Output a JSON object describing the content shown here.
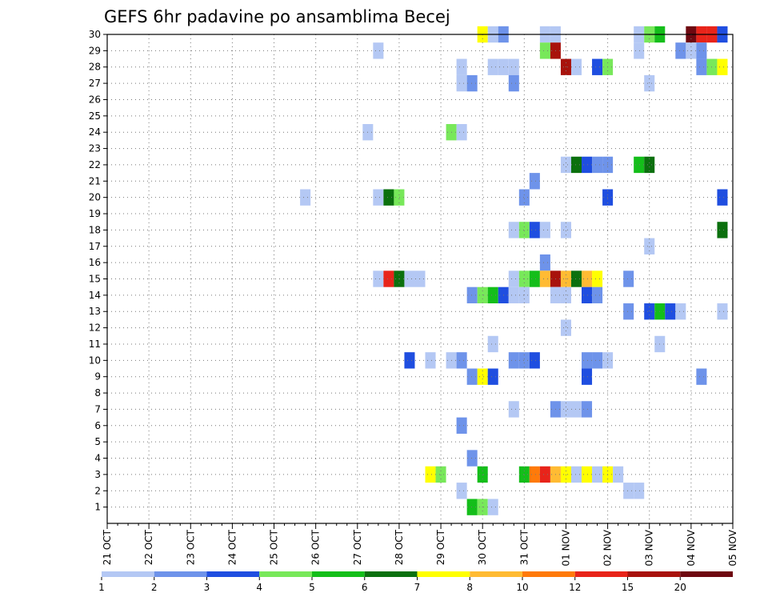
{
  "chart_data": {
    "type": "heatmap",
    "title": "GEFS 6hr padavine po ansamblima Becej",
    "x_ticks": [
      "21 OCT",
      "22 OCT",
      "23 OCT",
      "24 OCT",
      "25 OCT",
      "26 OCT",
      "27 OCT",
      "28 OCT",
      "29 OCT",
      "30 OCT",
      "31 OCT",
      "01 NOV",
      "02 NOV",
      "03 NOV",
      "04 NOV",
      "05 NOV"
    ],
    "y_ticks": [
      "1",
      "2",
      "3",
      "4",
      "5",
      "6",
      "7",
      "8",
      "9",
      "10",
      "11",
      "12",
      "13",
      "14",
      "15",
      "16",
      "17",
      "18",
      "19",
      "20",
      "21",
      "22",
      "23",
      "24",
      "25",
      "26",
      "27",
      "28",
      "29",
      "30"
    ],
    "xlim": [
      0,
      15
    ],
    "ylim": [
      0,
      30
    ],
    "grid": true,
    "colorbar": {
      "levels": [
        "1",
        "2",
        "3",
        "4",
        "5",
        "6",
        "7",
        "8",
        "10",
        "12",
        "15",
        "20"
      ],
      "colors": [
        "#b4c8f4",
        "#6e93ea",
        "#1f4ee0",
        "#78e85a",
        "#14be1a",
        "#0b700e",
        "#ffff00",
        "#ffbb33",
        "#ff7a0a",
        "#e8241a",
        "#a8120c",
        "#6e0810"
      ]
    },
    "cells": [
      {
        "x": 9.0,
        "y": 30,
        "bin": 6
      },
      {
        "x": 9.25,
        "y": 30,
        "bin": 0
      },
      {
        "x": 9.5,
        "y": 30,
        "bin": 1
      },
      {
        "x": 10.5,
        "y": 30,
        "bin": 0
      },
      {
        "x": 10.75,
        "y": 30,
        "bin": 0
      },
      {
        "x": 12.75,
        "y": 30,
        "bin": 0
      },
      {
        "x": 13.0,
        "y": 30,
        "bin": 3
      },
      {
        "x": 13.25,
        "y": 30,
        "bin": 4
      },
      {
        "x": 14.0,
        "y": 30,
        "bin": 11
      },
      {
        "x": 14.25,
        "y": 30,
        "bin": 9
      },
      {
        "x": 14.5,
        "y": 30,
        "bin": 9
      },
      {
        "x": 14.75,
        "y": 30,
        "bin": 2
      },
      {
        "x": 6.5,
        "y": 29,
        "bin": 0
      },
      {
        "x": 10.5,
        "y": 29,
        "bin": 3
      },
      {
        "x": 10.75,
        "y": 29,
        "bin": 10
      },
      {
        "x": 12.75,
        "y": 29,
        "bin": 0
      },
      {
        "x": 13.75,
        "y": 29,
        "bin": 1
      },
      {
        "x": 14.0,
        "y": 29,
        "bin": 0
      },
      {
        "x": 14.25,
        "y": 29,
        "bin": 1
      },
      {
        "x": 8.5,
        "y": 28,
        "bin": 0
      },
      {
        "x": 9.25,
        "y": 28,
        "bin": 0
      },
      {
        "x": 9.5,
        "y": 28,
        "bin": 0
      },
      {
        "x": 9.75,
        "y": 28,
        "bin": 0
      },
      {
        "x": 11.0,
        "y": 28,
        "bin": 10
      },
      {
        "x": 11.25,
        "y": 28,
        "bin": 0
      },
      {
        "x": 11.75,
        "y": 28,
        "bin": 2
      },
      {
        "x": 12.0,
        "y": 28,
        "bin": 3
      },
      {
        "x": 14.25,
        "y": 28,
        "bin": 1
      },
      {
        "x": 14.5,
        "y": 28,
        "bin": 3
      },
      {
        "x": 14.75,
        "y": 28,
        "bin": 6
      },
      {
        "x": 8.5,
        "y": 27,
        "bin": 0
      },
      {
        "x": 8.75,
        "y": 27,
        "bin": 1
      },
      {
        "x": 9.75,
        "y": 27,
        "bin": 1
      },
      {
        "x": 13.0,
        "y": 27,
        "bin": 0
      },
      {
        "x": 6.25,
        "y": 24,
        "bin": 0
      },
      {
        "x": 8.25,
        "y": 24,
        "bin": 3
      },
      {
        "x": 8.5,
        "y": 24,
        "bin": 0
      },
      {
        "x": 11.0,
        "y": 22,
        "bin": 0
      },
      {
        "x": 11.25,
        "y": 22,
        "bin": 5
      },
      {
        "x": 11.5,
        "y": 22,
        "bin": 2
      },
      {
        "x": 11.75,
        "y": 22,
        "bin": 1
      },
      {
        "x": 12.0,
        "y": 22,
        "bin": 1
      },
      {
        "x": 12.75,
        "y": 22,
        "bin": 4
      },
      {
        "x": 13.0,
        "y": 22,
        "bin": 5
      },
      {
        "x": 10.25,
        "y": 21,
        "bin": 1
      },
      {
        "x": 4.75,
        "y": 20,
        "bin": 0
      },
      {
        "x": 6.5,
        "y": 20,
        "bin": 0
      },
      {
        "x": 6.75,
        "y": 20,
        "bin": 5
      },
      {
        "x": 7.0,
        "y": 20,
        "bin": 3
      },
      {
        "x": 10.0,
        "y": 20,
        "bin": 1
      },
      {
        "x": 12.0,
        "y": 20,
        "bin": 2
      },
      {
        "x": 14.75,
        "y": 20,
        "bin": 2
      },
      {
        "x": 9.75,
        "y": 18,
        "bin": 0
      },
      {
        "x": 10.0,
        "y": 18,
        "bin": 3
      },
      {
        "x": 10.25,
        "y": 18,
        "bin": 2
      },
      {
        "x": 10.5,
        "y": 18,
        "bin": 0
      },
      {
        "x": 11.0,
        "y": 18,
        "bin": 0
      },
      {
        "x": 14.75,
        "y": 18,
        "bin": 5
      },
      {
        "x": 13.0,
        "y": 17,
        "bin": 0
      },
      {
        "x": 10.5,
        "y": 16,
        "bin": 1
      },
      {
        "x": 6.5,
        "y": 15,
        "bin": 0
      },
      {
        "x": 6.75,
        "y": 15,
        "bin": 9
      },
      {
        "x": 7.0,
        "y": 15,
        "bin": 5
      },
      {
        "x": 7.25,
        "y": 15,
        "bin": 0
      },
      {
        "x": 7.5,
        "y": 15,
        "bin": 0
      },
      {
        "x": 9.75,
        "y": 15,
        "bin": 0
      },
      {
        "x": 10.0,
        "y": 15,
        "bin": 3
      },
      {
        "x": 10.25,
        "y": 15,
        "bin": 4
      },
      {
        "x": 10.5,
        "y": 15,
        "bin": 7
      },
      {
        "x": 10.75,
        "y": 15,
        "bin": 10
      },
      {
        "x": 11.0,
        "y": 15,
        "bin": 7
      },
      {
        "x": 11.25,
        "y": 15,
        "bin": 5
      },
      {
        "x": 11.5,
        "y": 15,
        "bin": 7
      },
      {
        "x": 11.75,
        "y": 15,
        "bin": 6
      },
      {
        "x": 12.5,
        "y": 15,
        "bin": 1
      },
      {
        "x": 8.75,
        "y": 14,
        "bin": 1
      },
      {
        "x": 9.0,
        "y": 14,
        "bin": 3
      },
      {
        "x": 9.25,
        "y": 14,
        "bin": 4
      },
      {
        "x": 9.5,
        "y": 14,
        "bin": 2
      },
      {
        "x": 9.75,
        "y": 14,
        "bin": 0
      },
      {
        "x": 10.0,
        "y": 14,
        "bin": 0
      },
      {
        "x": 10.75,
        "y": 14,
        "bin": 0
      },
      {
        "x": 11.0,
        "y": 14,
        "bin": 0
      },
      {
        "x": 11.5,
        "y": 14,
        "bin": 2
      },
      {
        "x": 11.75,
        "y": 14,
        "bin": 1
      },
      {
        "x": 12.5,
        "y": 13,
        "bin": 1
      },
      {
        "x": 13.0,
        "y": 13,
        "bin": 2
      },
      {
        "x": 13.25,
        "y": 13,
        "bin": 4
      },
      {
        "x": 13.5,
        "y": 13,
        "bin": 2
      },
      {
        "x": 13.75,
        "y": 13,
        "bin": 0
      },
      {
        "x": 14.75,
        "y": 13,
        "bin": 0
      },
      {
        "x": 11.0,
        "y": 12,
        "bin": 0
      },
      {
        "x": 9.25,
        "y": 11,
        "bin": 0
      },
      {
        "x": 13.25,
        "y": 11,
        "bin": 0
      },
      {
        "x": 7.25,
        "y": 10,
        "bin": 2
      },
      {
        "x": 7.75,
        "y": 10,
        "bin": 0
      },
      {
        "x": 8.25,
        "y": 10,
        "bin": 0
      },
      {
        "x": 8.5,
        "y": 10,
        "bin": 1
      },
      {
        "x": 9.75,
        "y": 10,
        "bin": 1
      },
      {
        "x": 10.0,
        "y": 10,
        "bin": 1
      },
      {
        "x": 10.25,
        "y": 10,
        "bin": 2
      },
      {
        "x": 11.5,
        "y": 10,
        "bin": 1
      },
      {
        "x": 11.75,
        "y": 10,
        "bin": 1
      },
      {
        "x": 12.0,
        "y": 10,
        "bin": 0
      },
      {
        "x": 8.75,
        "y": 9,
        "bin": 1
      },
      {
        "x": 9.0,
        "y": 9,
        "bin": 6
      },
      {
        "x": 9.25,
        "y": 9,
        "bin": 2
      },
      {
        "x": 11.5,
        "y": 9,
        "bin": 2
      },
      {
        "x": 14.25,
        "y": 9,
        "bin": 1
      },
      {
        "x": 9.75,
        "y": 7,
        "bin": 0
      },
      {
        "x": 10.75,
        "y": 7,
        "bin": 1
      },
      {
        "x": 11.0,
        "y": 7,
        "bin": 0
      },
      {
        "x": 11.25,
        "y": 7,
        "bin": 0
      },
      {
        "x": 11.5,
        "y": 7,
        "bin": 1
      },
      {
        "x": 8.5,
        "y": 6,
        "bin": 1
      },
      {
        "x": 8.75,
        "y": 4,
        "bin": 1
      },
      {
        "x": 7.75,
        "y": 3,
        "bin": 6
      },
      {
        "x": 8.0,
        "y": 3,
        "bin": 3
      },
      {
        "x": 9.0,
        "y": 3,
        "bin": 4
      },
      {
        "x": 10.0,
        "y": 3,
        "bin": 4
      },
      {
        "x": 10.25,
        "y": 3,
        "bin": 8
      },
      {
        "x": 10.5,
        "y": 3,
        "bin": 9
      },
      {
        "x": 10.75,
        "y": 3,
        "bin": 7
      },
      {
        "x": 11.0,
        "y": 3,
        "bin": 6
      },
      {
        "x": 11.25,
        "y": 3,
        "bin": 0
      },
      {
        "x": 11.5,
        "y": 3,
        "bin": 6
      },
      {
        "x": 11.75,
        "y": 3,
        "bin": 0
      },
      {
        "x": 12.0,
        "y": 3,
        "bin": 6
      },
      {
        "x": 12.25,
        "y": 3,
        "bin": 0
      },
      {
        "x": 8.5,
        "y": 2,
        "bin": 0
      },
      {
        "x": 12.5,
        "y": 2,
        "bin": 0
      },
      {
        "x": 12.75,
        "y": 2,
        "bin": 0
      },
      {
        "x": 8.75,
        "y": 1,
        "bin": 4
      },
      {
        "x": 9.0,
        "y": 1,
        "bin": 3
      },
      {
        "x": 9.25,
        "y": 1,
        "bin": 0
      }
    ]
  }
}
